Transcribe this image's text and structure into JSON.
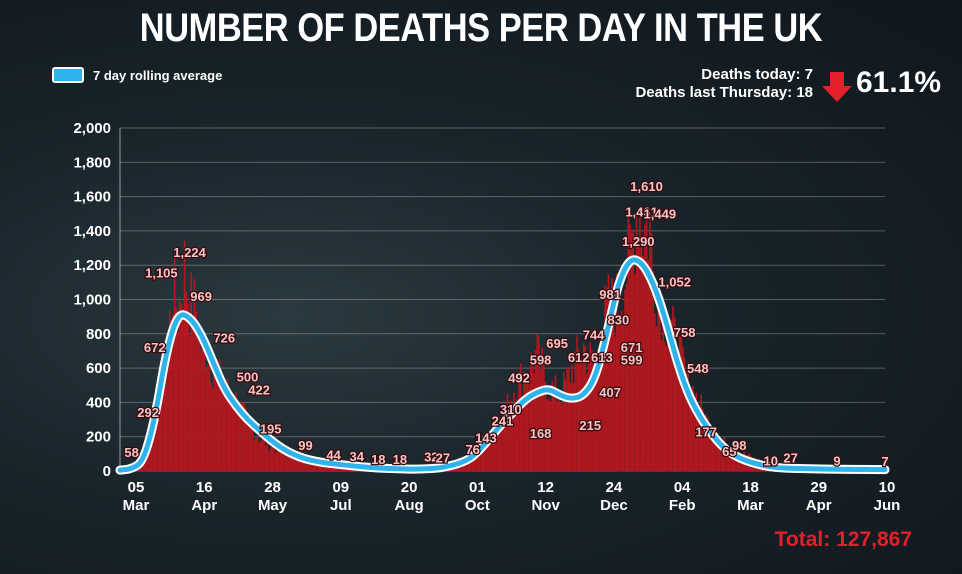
{
  "page": {
    "title": "NUMBER OF DEATHS PER DAY IN THE UK",
    "legend_label": "7 day rolling average",
    "deaths_today": "Deaths today: 7",
    "deaths_last_thursday": "Deaths last Thursday: 18",
    "change_percent": "61.1%",
    "change_direction": "down",
    "total": "Total: 127,867"
  },
  "colors": {
    "bars": "#b5171e",
    "average_line": "#2fb3ea",
    "average_outline": "#ffffff",
    "label_text": "#f2c6c6",
    "total_text": "#e3202b",
    "arrow": "#e3202b"
  },
  "chart_data": {
    "type": "bar",
    "ylim": [
      0,
      2000
    ],
    "y_ticks": [
      "0",
      "200",
      "400",
      "600",
      "800",
      "1,000",
      "1,200",
      "1,400",
      "1,600",
      "1,800",
      "2,000"
    ],
    "x_ticks": [
      {
        "day": "05",
        "month": "Mar"
      },
      {
        "day": "16",
        "month": "Apr"
      },
      {
        "day": "28",
        "month": "May"
      },
      {
        "day": "09",
        "month": "Jul"
      },
      {
        "day": "20",
        "month": "Aug"
      },
      {
        "day": "01",
        "month": "Oct"
      },
      {
        "day": "12",
        "month": "Nov"
      },
      {
        "day": "24",
        "month": "Dec"
      },
      {
        "day": "04",
        "month": "Feb"
      },
      {
        "day": "18",
        "month": "Mar"
      },
      {
        "day": "29",
        "month": "Apr"
      },
      {
        "day": "10",
        "month": "Jun"
      }
    ],
    "series": [
      {
        "name": "7 day rolling average",
        "style": "line",
        "x": [
          "05 Mar",
          "12 Mar",
          "19 Mar",
          "26 Mar",
          "02 Apr",
          "09 Apr",
          "16 Apr",
          "23 Apr",
          "30 Apr",
          "07 May",
          "14 May",
          "21 May",
          "28 May",
          "04 Jun",
          "11 Jun",
          "18 Jun",
          "25 Jun",
          "02 Jul",
          "09 Jul",
          "23 Jul",
          "06 Aug",
          "20 Aug",
          "03 Sep",
          "17 Sep",
          "01 Oct",
          "08 Oct",
          "15 Oct",
          "22 Oct",
          "29 Oct",
          "05 Nov",
          "12 Nov",
          "19 Nov",
          "26 Nov",
          "03 Dec",
          "10 Dec",
          "17 Dec",
          "24 Dec",
          "31 Dec",
          "07 Jan",
          "14 Jan",
          "21 Jan",
          "28 Jan",
          "04 Feb",
          "11 Feb",
          "18 Feb",
          "25 Feb",
          "04 Mar",
          "11 Mar",
          "18 Mar",
          "25 Mar",
          "01 Apr",
          "08 Apr",
          "15 Apr",
          "29 Apr",
          "13 May",
          "27 May",
          "10 Jun"
        ],
        "values": [
          5,
          12,
          55,
          300,
          700,
          920,
          900,
          800,
          640,
          480,
          380,
          300,
          240,
          180,
          130,
          95,
          70,
          55,
          45,
          30,
          18,
          12,
          10,
          20,
          60,
          120,
          200,
          280,
          350,
          420,
          460,
          480,
          440,
          420,
          440,
          540,
          800,
          1100,
          1240,
          1220,
          1100,
          900,
          650,
          450,
          320,
          220,
          140,
          90,
          60,
          40,
          25,
          18,
          15,
          12,
          10,
          9,
          8
        ]
      }
    ],
    "daily_bars": {
      "x": [
        "05 Mar",
        "12 Mar",
        "19 Mar",
        "26 Mar",
        "02 Apr",
        "06 Apr",
        "09 Apr",
        "13 Apr",
        "16 Apr",
        "20 Apr",
        "23 Apr",
        "27 Apr",
        "30 Apr",
        "07 May",
        "14 May",
        "21 May",
        "28 May",
        "04 Jun",
        "11 Jun",
        "18 Jun",
        "25 Jun",
        "02 Jul",
        "09 Jul",
        "23 Jul",
        "06 Aug",
        "20 Aug",
        "03 Sep",
        "17 Sep",
        "01 Oct",
        "08 Oct",
        "15 Oct",
        "22 Oct",
        "29 Oct",
        "05 Nov",
        "12 Nov",
        "19 Nov",
        "26 Nov",
        "03 Dec",
        "10 Dec",
        "17 Dec",
        "24 Dec",
        "31 Dec",
        "07 Jan",
        "12 Jan",
        "14 Jan",
        "19 Jan",
        "21 Jan",
        "25 Jan",
        "28 Jan",
        "04 Feb",
        "11 Feb",
        "18 Feb",
        "25 Feb",
        "04 Mar",
        "11 Mar",
        "18 Mar",
        "25 Mar",
        "01 Apr",
        "08 Apr",
        "15 Apr",
        "29 Apr",
        "13 May",
        "27 May",
        "10 Jun"
      ],
      "values": [
        2,
        10,
        60,
        290,
        670,
        1105,
        950,
        1224,
        1000,
        969,
        760,
        726,
        620,
        500,
        422,
        300,
        195,
        150,
        110,
        99,
        60,
        44,
        34,
        18,
        18,
        15,
        12,
        32,
        76,
        143,
        241,
        310,
        492,
        598,
        695,
        500,
        450,
        612,
        744,
        613,
        981,
        1000,
        1290,
        1610,
        1461,
        1449,
        1200,
        1052,
        950,
        758,
        548,
        400,
        250,
        177,
        120,
        98,
        65,
        40,
        25,
        18,
        10,
        27,
        9,
        7
      ]
    },
    "data_labels": [
      {
        "text": "58",
        "x": "12 Mar",
        "value": 58
      },
      {
        "text": "292",
        "x": "22 Mar",
        "value": 292
      },
      {
        "text": "672",
        "x": "26 Mar",
        "value": 672
      },
      {
        "text": "1,105",
        "x": "30 Mar",
        "value": 1105
      },
      {
        "text": "1,224",
        "x": "16 Apr",
        "value": 1224
      },
      {
        "text": "969",
        "x": "23 Apr",
        "value": 969
      },
      {
        "text": "726",
        "x": "07 May",
        "value": 726
      },
      {
        "text": "500",
        "x": "21 May",
        "value": 500
      },
      {
        "text": "422",
        "x": "28 May",
        "value": 422
      },
      {
        "text": "195",
        "x": "04 Jun",
        "value": 195
      },
      {
        "text": "99",
        "x": "25 Jun",
        "value": 99
      },
      {
        "text": "44",
        "x": "12 Jul",
        "value": 44
      },
      {
        "text": "34",
        "x": "26 Jul",
        "value": 34
      },
      {
        "text": "18",
        "x": "08 Aug",
        "value": 18
      },
      {
        "text": "18",
        "x": "21 Aug",
        "value": 18
      },
      {
        "text": "32",
        "x": "09 Sep",
        "value": 32
      },
      {
        "text": "27",
        "x": "16 Sep",
        "value": 27
      },
      {
        "text": "76",
        "x": "04 Oct",
        "value": 76
      },
      {
        "text": "143",
        "x": "12 Oct",
        "value": 143
      },
      {
        "text": "241",
        "x": "22 Oct",
        "value": 241
      },
      {
        "text": "310",
        "x": "27 Oct",
        "value": 310
      },
      {
        "text": "492",
        "x": "01 Nov",
        "value": 492
      },
      {
        "text": "168",
        "x": "14 Nov",
        "value": 168
      },
      {
        "text": "598",
        "x": "14 Nov",
        "value": 598
      },
      {
        "text": "695",
        "x": "24 Nov",
        "value": 695
      },
      {
        "text": "612",
        "x": "07 Dec",
        "value": 612
      },
      {
        "text": "215",
        "x": "14 Dec",
        "value": 215
      },
      {
        "text": "744",
        "x": "16 Dec",
        "value": 744
      },
      {
        "text": "613",
        "x": "21 Dec",
        "value": 613
      },
      {
        "text": "407",
        "x": "26 Dec",
        "value": 407
      },
      {
        "text": "981",
        "x": "26 Dec",
        "value": 981
      },
      {
        "text": "830",
        "x": "31 Dec",
        "value": 830
      },
      {
        "text": "671",
        "x": "08 Jan",
        "value": 671
      },
      {
        "text": "599",
        "x": "08 Jan",
        "value": 599
      },
      {
        "text": "1,290",
        "x": "12 Jan",
        "value": 1290
      },
      {
        "text": "1,461",
        "x": "14 Jan",
        "value": 1461
      },
      {
        "text": "1,610",
        "x": "17 Jan",
        "value": 1610
      },
      {
        "text": "1,449",
        "x": "25 Jan",
        "value": 1449
      },
      {
        "text": "1,052",
        "x": "03 Feb",
        "value": 1052
      },
      {
        "text": "758",
        "x": "09 Feb",
        "value": 758
      },
      {
        "text": "548",
        "x": "17 Feb",
        "value": 548
      },
      {
        "text": "177",
        "x": "22 Feb",
        "value": 177
      },
      {
        "text": "65",
        "x": "08 Mar",
        "value": 65
      },
      {
        "text": "98",
        "x": "14 Mar",
        "value": 98
      },
      {
        "text": "10",
        "x": "02 Apr",
        "value": 10
      },
      {
        "text": "27",
        "x": "14 Apr",
        "value": 27
      },
      {
        "text": "9",
        "x": "12 May",
        "value": 9
      },
      {
        "text": "7",
        "x": "10 Jun",
        "value": 7
      }
    ],
    "grid": true,
    "legend_position": "top-left",
    "title": "NUMBER OF DEATHS PER DAY IN THE UK",
    "xlabel": "",
    "ylabel": ""
  }
}
